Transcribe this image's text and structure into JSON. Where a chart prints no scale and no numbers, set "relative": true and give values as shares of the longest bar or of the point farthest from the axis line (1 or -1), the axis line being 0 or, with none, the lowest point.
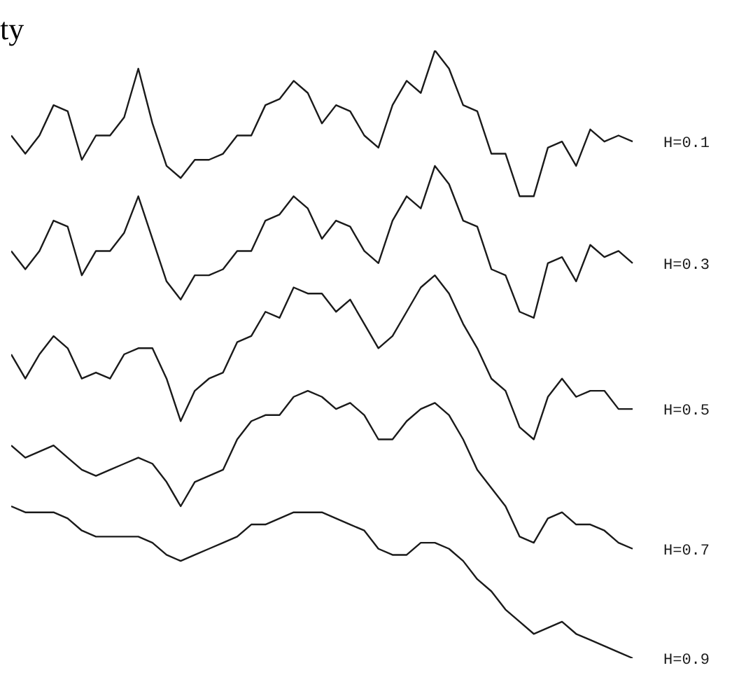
{
  "chart_data": {
    "type": "line",
    "relative": true,
    "annotations": [
      "ty"
    ],
    "grid": false,
    "legend": false,
    "marker": "none",
    "line_style": "solid",
    "categories": [
      null,
      null,
      null,
      null,
      null,
      null,
      null,
      null,
      null,
      null,
      null,
      null,
      null,
      null,
      null,
      null,
      null,
      null,
      null,
      null,
      null,
      null,
      null,
      null,
      null,
      null,
      null,
      null,
      null,
      null,
      null,
      null,
      null,
      null,
      null,
      null,
      null,
      null,
      null,
      null,
      null,
      null,
      null,
      null,
      null
    ],
    "series": [
      {
        "name": "H=0.1",
        "color": "#1a1a1a",
        "values": [
          0.86,
          0.83,
          0.86,
          0.91,
          0.9,
          0.82,
          0.86,
          0.86,
          0.89,
          0.97,
          0.88,
          0.81,
          0.79,
          0.82,
          0.82,
          0.83,
          0.86,
          0.86,
          0.91,
          0.92,
          0.95,
          0.93,
          0.88,
          0.91,
          0.9,
          0.86,
          0.84,
          0.91,
          0.95,
          0.93,
          1.0,
          0.97,
          0.91,
          0.9,
          0.83,
          0.83,
          0.76,
          0.76,
          0.84,
          0.85,
          0.81,
          0.87,
          0.85,
          0.86,
          0.85
        ]
      },
      {
        "name": "H=0.3",
        "color": "#1a1a1a",
        "values": [
          0.67,
          0.64,
          0.67,
          0.72,
          0.71,
          0.63,
          0.67,
          0.67,
          0.7,
          0.76,
          0.69,
          0.62,
          0.59,
          0.63,
          0.63,
          0.64,
          0.67,
          0.67,
          0.72,
          0.73,
          0.76,
          0.74,
          0.69,
          0.72,
          0.71,
          0.67,
          0.65,
          0.72,
          0.76,
          0.74,
          0.81,
          0.78,
          0.72,
          0.71,
          0.64,
          0.63,
          0.57,
          0.56,
          0.65,
          0.66,
          0.62,
          0.68,
          0.66,
          0.67,
          0.65
        ]
      },
      {
        "name": "H=0.5",
        "color": "#1a1a1a",
        "values": [
          0.5,
          0.46,
          0.5,
          0.53,
          0.51,
          0.46,
          0.47,
          0.46,
          0.5,
          0.51,
          0.51,
          0.46,
          0.39,
          0.44,
          0.46,
          0.47,
          0.52,
          0.53,
          0.57,
          0.56,
          0.61,
          0.6,
          0.6,
          0.57,
          0.59,
          0.55,
          0.51,
          0.53,
          0.57,
          0.61,
          0.63,
          0.6,
          0.55,
          0.51,
          0.46,
          0.44,
          0.38,
          0.36,
          0.43,
          0.46,
          0.43,
          0.44,
          0.44,
          0.41,
          0.41
        ]
      },
      {
        "name": "H=0.7",
        "color": "#1a1a1a",
        "values": [
          0.35,
          0.33,
          0.34,
          0.35,
          0.33,
          0.31,
          0.3,
          0.31,
          0.32,
          0.33,
          0.32,
          0.29,
          0.25,
          0.29,
          0.3,
          0.31,
          0.36,
          0.39,
          0.4,
          0.4,
          0.43,
          0.44,
          0.43,
          0.41,
          0.42,
          0.4,
          0.36,
          0.36,
          0.39,
          0.41,
          0.42,
          0.4,
          0.36,
          0.31,
          0.28,
          0.25,
          0.2,
          0.19,
          0.23,
          0.24,
          0.22,
          0.22,
          0.21,
          0.19,
          0.18
        ]
      },
      {
        "name": "H=0.9",
        "color": "#1a1a1a",
        "values": [
          0.25,
          0.24,
          0.24,
          0.24,
          0.23,
          0.21,
          0.2,
          0.2,
          0.2,
          0.2,
          0.19,
          0.17,
          0.16,
          0.17,
          0.18,
          0.19,
          0.2,
          0.22,
          0.22,
          0.23,
          0.24,
          0.24,
          0.24,
          0.23,
          0.22,
          0.21,
          0.18,
          0.17,
          0.17,
          0.19,
          0.19,
          0.18,
          0.16,
          0.13,
          0.11,
          0.08,
          0.06,
          0.04,
          0.05,
          0.06,
          0.04,
          0.03,
          0.02,
          0.01,
          0
        ]
      }
    ]
  }
}
